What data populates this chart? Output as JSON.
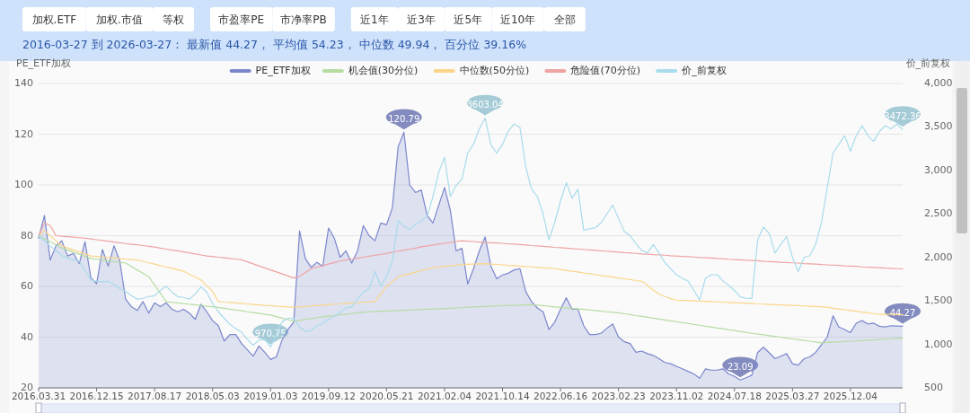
{
  "chart_data": {
    "type": "line",
    "subtitle": "2016-03-27 到 2026-03-27： 最新值 44.27， 平均值 54.23， 中位数 49.94， 百分位 39.16%",
    "annotations": [
      "加权.ETF",
      "加权.市值",
      "等权",
      "市盈率PE",
      "市净率PB",
      "近1年",
      "近3年",
      "近5年",
      "近10年",
      "全部"
    ],
    "ylabel": "PE_ETF加权",
    "y2label": "价_前复权",
    "categories": [
      "2016.03.31",
      null,
      null,
      null,
      null,
      null,
      null,
      null,
      null,
      null,
      "2016.12.15",
      null,
      null,
      null,
      null,
      null,
      null,
      null,
      null,
      null,
      "2017.08.17",
      null,
      null,
      null,
      null,
      null,
      null,
      null,
      null,
      null,
      "2018.05.03",
      null,
      null,
      null,
      null,
      null,
      null,
      null,
      null,
      null,
      "2019.01.03",
      null,
      null,
      null,
      null,
      null,
      null,
      null,
      null,
      null,
      "2019.09.12",
      null,
      null,
      null,
      null,
      null,
      null,
      null,
      null,
      null,
      "2020.05.21",
      null,
      null,
      null,
      null,
      null,
      null,
      null,
      null,
      null,
      "2021.02.04",
      null,
      null,
      null,
      null,
      null,
      null,
      null,
      null,
      null,
      "2021.10.14",
      null,
      null,
      null,
      null,
      null,
      null,
      null,
      null,
      null,
      "2022.06.16",
      null,
      null,
      null,
      null,
      null,
      null,
      null,
      null,
      null,
      "2023.02.23",
      null,
      null,
      null,
      null,
      null,
      null,
      null,
      null,
      null,
      "2023.11.02",
      null,
      null,
      null,
      null,
      null,
      null,
      null,
      null,
      null,
      "2024.07.18",
      null,
      null,
      null,
      null,
      null,
      null,
      null,
      null,
      null,
      "2025.03.27",
      null,
      null,
      null,
      null,
      null,
      null,
      null,
      null,
      null,
      "2025.12.04",
      null,
      null,
      null,
      null,
      null,
      null,
      null,
      null,
      null
    ],
    "ylim": [
      20,
      140
    ],
    "yticks": [
      20,
      40,
      60,
      80,
      100,
      120,
      140
    ],
    "y2lim": [
      500,
      4000
    ],
    "y2ticks": [
      500,
      {
        "value": 1000,
        "label": "1,000"
      },
      {
        "value": 1500,
        "label": "1,500"
      },
      {
        "value": 2000,
        "label": "2,000"
      },
      {
        "value": 2500,
        "label": "2,500"
      },
      {
        "value": 3000,
        "label": "3,000"
      },
      {
        "value": 3500,
        "label": "3,500"
      },
      {
        "value": 4000,
        "label": "4,000"
      }
    ],
    "grid": "y",
    "legend": "top",
    "marker": "none",
    "series": [
      {
        "name": "PE_ETF加权",
        "type": "area",
        "color": "#7b87cc",
        "values": [
          79,
          88,
          70.4,
          76,
          78,
          72,
          73,
          69,
          77.6,
          63.5,
          61,
          74.6,
          68,
          76,
          70,
          55,
          52,
          50.5,
          54,
          49.5,
          53.5,
          52,
          53.5,
          51,
          50,
          51,
          49.5,
          47,
          53,
          50,
          46.5,
          44.5,
          38.5,
          41,
          41,
          37.5,
          35,
          32.5,
          36.5,
          34,
          31.2,
          32.2,
          39,
          43,
          46,
          81.9,
          71,
          67.5,
          69.5,
          68,
          83,
          79,
          71.5,
          74,
          69.2,
          74,
          84,
          80,
          78,
          85,
          84.3,
          91,
          115,
          120.79,
          100,
          97,
          98,
          88,
          85,
          92,
          99,
          90,
          74,
          75,
          61,
          67,
          74,
          79.5,
          68,
          63,
          64.5,
          65.2,
          66.5,
          67,
          58,
          54,
          51.5,
          50,
          43,
          45.9,
          51,
          55.5,
          51,
          51,
          44.5,
          41,
          41,
          41.5,
          43.5,
          45.2,
          40,
          38.2,
          37.5,
          34,
          34.5,
          33.5,
          32.8,
          31.5,
          30,
          29.5,
          28.5,
          27.5,
          26.5,
          25.5,
          23.8,
          27.5,
          27,
          27,
          27.5,
          25.5,
          24.5,
          23.09,
          24,
          25,
          34,
          36,
          33.8,
          31.5,
          32.5,
          33.5,
          29.5,
          29,
          31.5,
          32.2,
          34,
          37,
          40,
          48.4,
          44,
          43,
          41.8,
          45.5,
          46.5,
          45.2,
          45.5,
          44.3,
          44,
          44.5,
          44.4,
          44.27
        ],
        "value_labels": [
          null,
          null,
          null,
          null,
          null,
          null,
          null,
          null,
          null,
          null,
          null,
          null,
          null,
          null,
          null,
          null,
          null,
          null,
          null,
          null,
          null,
          null,
          null,
          null,
          null,
          null,
          null,
          null,
          null,
          null,
          null,
          null,
          null,
          null,
          null,
          null,
          null,
          null,
          null,
          null,
          null,
          null,
          null,
          null,
          null,
          null,
          null,
          null,
          null,
          null,
          null,
          null,
          null,
          null,
          null,
          null,
          null,
          null,
          null,
          null,
          null,
          null,
          null,
          "120.79",
          null,
          null,
          null,
          null,
          null,
          null,
          null,
          null,
          null,
          null,
          null,
          null,
          null,
          null,
          null,
          null,
          null,
          null,
          null,
          null,
          null,
          null,
          null,
          null,
          null,
          null,
          null,
          null,
          null,
          null,
          null,
          null,
          null,
          null,
          null,
          null,
          null,
          null,
          null,
          null,
          null,
          null,
          null,
          null,
          null,
          null,
          null,
          null,
          null,
          null,
          null,
          null,
          null,
          null,
          null,
          null,
          null,
          "23.09",
          null,
          null,
          null,
          null,
          null,
          null,
          null,
          null,
          null,
          null,
          null,
          null,
          null,
          null,
          null,
          null,
          null,
          null,
          null,
          null,
          null,
          null,
          null,
          null,
          null,
          null,
          null,
          "44.27"
        ]
      },
      {
        "name": "机会值(30分位)",
        "type": "line",
        "color": "#b6dca2",
        "values": [
          80,
          78.8,
          77.6,
          76.4,
          75.2,
          74.4,
          73.5,
          72.7,
          71.8,
          71,
          70.7,
          70.4,
          70.1,
          69.8,
          69.5,
          69.2,
          67.9,
          66.5,
          65.2,
          63.8,
          60.5,
          57.3,
          54,
          53.7,
          53.5,
          53.2,
          53,
          52.7,
          52.5,
          52.2,
          52,
          51.7,
          51.4,
          51,
          50.7,
          50.4,
          50,
          49.7,
          49.4,
          49,
          48.7,
          48.1,
          47.5,
          46.9,
          46.3,
          46.6,
          47,
          47.3,
          47.7,
          48,
          48.3,
          48.5,
          48.8,
          49,
          49.3,
          49.5,
          49.8,
          50,
          50.1,
          50.2,
          50.3,
          50.4,
          50.5,
          50.6,
          50.7,
          50.8,
          50.9,
          51,
          51.1,
          51.2,
          51.3,
          51.4,
          51.5,
          51.6,
          51.8,
          51.9,
          52,
          52.1,
          52.2,
          52.3,
          52.4,
          52.4,
          52.5,
          52.6,
          52.7,
          52.8,
          52.6,
          52.4,
          52.2,
          51.9,
          51.7,
          51.5,
          51.3,
          51.1,
          50.9,
          50.7,
          50.5,
          50.2,
          50,
          49.8,
          49.6,
          49.2,
          48.9,
          48.5,
          48.2,
          47.8,
          47.5,
          47.1,
          46.8,
          46.4,
          46.1,
          45.7,
          45.4,
          45,
          44.7,
          44.3,
          44,
          43.6,
          43.3,
          42.9,
          42.6,
          42.2,
          41.9,
          41.5,
          41.2,
          40.9,
          40.6,
          40.3,
          40,
          39.6,
          39.3,
          39,
          38.7,
          38.4,
          38.1,
          37.75,
          37.9,
          38,
          38.1,
          38.3,
          38.4,
          38.5,
          38.7,
          38.8,
          38.9,
          39.1,
          39.2,
          39.3,
          39.5,
          39.6
        ]
      },
      {
        "name": "中位数(50分位)",
        "type": "line",
        "color": "#fbd68a",
        "values": [
          80,
          82,
          80,
          78,
          76,
          75.2,
          74.4,
          73.6,
          72.8,
          72,
          71.8,
          71.6,
          71.4,
          71.2,
          71,
          70.8,
          70.6,
          70.4,
          69.9,
          69.3,
          68.8,
          68.2,
          67.7,
          67.1,
          66.6,
          66,
          64.8,
          63.7,
          62.5,
          60.3,
          58,
          54,
          53.8,
          53.7,
          53.5,
          53.3,
          53.1,
          52.9,
          52.7,
          52.5,
          52.4,
          52.2,
          52.1,
          51.9,
          51.8,
          52,
          52.1,
          52.3,
          52.5,
          52.6,
          52.8,
          53,
          53.1,
          53.3,
          53.5,
          53.6,
          53.8,
          53.9,
          54,
          57,
          60,
          61.9,
          63.8,
          64.4,
          65,
          65.6,
          66.2,
          66.8,
          67.4,
          67.6,
          67.9,
          68.1,
          68.4,
          68.6,
          68.7,
          68.8,
          68.9,
          69,
          68.8,
          68.7,
          68.5,
          68.3,
          68.2,
          68,
          67.8,
          67.7,
          67.5,
          67.3,
          67.2,
          67,
          66.7,
          66.3,
          66,
          65.7,
          65.3,
          65,
          64.7,
          64.3,
          64,
          63.7,
          63.3,
          63,
          62.7,
          62.3,
          62,
          60.5,
          58.5,
          57,
          56,
          55.2,
          54.6,
          54.5,
          54.4,
          54.3,
          54.2,
          54.1,
          54,
          53.9,
          53.8,
          53.7,
          53.6,
          53.5,
          53.4,
          53.3,
          53.1,
          53,
          52.9,
          52.8,
          52.7,
          52.6,
          52.5,
          52.4,
          52.3,
          52.2,
          52.1,
          52,
          51.7,
          51.4,
          51.1,
          50.8,
          50.5,
          50.2,
          49.9,
          49.6,
          49.3,
          49,
          49,
          49,
          48.9,
          48.9
        ]
      },
      {
        "name": "危险值(70分位)",
        "type": "line",
        "color": "#f0a3a3",
        "values": [
          80,
          85,
          84,
          80,
          79.8,
          79.6,
          79.4,
          79.2,
          79,
          78.7,
          78.4,
          78.1,
          77.8,
          77.5,
          77.2,
          76.9,
          76.6,
          76.4,
          76.1,
          75.8,
          75.5,
          75.1,
          74.7,
          74.3,
          74,
          73.6,
          73.2,
          72.8,
          72.4,
          72,
          71.8,
          71.5,
          71.3,
          71,
          70.8,
          70.5,
          69.7,
          68.9,
          68.1,
          67.3,
          66.5,
          65.7,
          64.9,
          64.1,
          63.3,
          64,
          65.5,
          67,
          67.6,
          68.2,
          68.8,
          69.4,
          70,
          70.4,
          70.8,
          71.1,
          71.5,
          71.9,
          72.3,
          72.6,
          73,
          73.4,
          73.9,
          74.3,
          74.7,
          75.1,
          75.6,
          76,
          76.3,
          76.7,
          77,
          77.3,
          77.7,
          78,
          77.8,
          77.7,
          77.5,
          77.3,
          77.2,
          77.1,
          77,
          76.8,
          76.7,
          76.5,
          76.3,
          76.1,
          76,
          75.8,
          75.6,
          75.4,
          75.3,
          75.1,
          74.9,
          74.7,
          74.6,
          74.4,
          74.2,
          74,
          73.9,
          73.7,
          73.5,
          73.3,
          73.2,
          73,
          72.8,
          72.7,
          72.5,
          72.4,
          72.3,
          72.1,
          72,
          71.8,
          71.7,
          71.6,
          71.4,
          71.3,
          71.2,
          71,
          70.9,
          70.7,
          70.6,
          70.5,
          70.3,
          70.2,
          70.1,
          69.9,
          69.8,
          69.7,
          69.5,
          69.4,
          69.3,
          69.2,
          69,
          68.9,
          68.8,
          68.6,
          68.5,
          68.4,
          68.3,
          68.1,
          68,
          67.9,
          67.7,
          67.6,
          67.5,
          67.4,
          67.2,
          67.1,
          67,
          66.9
        ]
      },
      {
        "name": "价_前复权",
        "type": "line",
        "axis": "y2",
        "color": "#a9dcec",
        "values": [
          2250,
          2190,
          2130,
          2080,
          2020,
          1990,
          1970,
          1960,
          1850,
          1740,
          1725,
          1720,
          1725,
          1690,
          1640,
          1610,
          1560,
          1520,
          1530,
          1550,
          1560,
          1620,
          1670,
          1600,
          1550,
          1540,
          1520,
          1580,
          1660,
          1600,
          1470,
          1375,
          1300,
          1230,
          1180,
          1140,
          1060,
          990,
          1050,
          1060,
          970.75,
          1120,
          1260,
          1300,
          1300,
          1200,
          1150,
          1160,
          1210,
          1240,
          1290,
          1320,
          1370,
          1420,
          1430,
          1520,
          1600,
          1640,
          1840,
          1670,
          1780,
          1960,
          2420,
          2360,
          2320,
          2380,
          2420,
          2470,
          2700,
          2980,
          3150,
          2700,
          2830,
          2900,
          3200,
          3300,
          3479,
          3603.04,
          3296,
          3200,
          3300,
          3450,
          3533,
          3497,
          3041,
          2786,
          2700,
          2500,
          2203,
          2400,
          2650,
          2859,
          2680,
          2786,
          2312,
          2330,
          2340,
          2400,
          2500,
          2604,
          2450,
          2300,
          2250,
          2160,
          2080,
          2050,
          2148,
          2050,
          1940,
          1870,
          1800,
          1760,
          1729,
          1620,
          1510,
          1760,
          1801,
          1801,
          1730,
          1680,
          1620,
          1546,
          1530,
          1528,
          2203,
          2348,
          2276,
          2050,
          2150,
          2239,
          2000,
          1838,
          2000,
          2020,
          2150,
          2400,
          2800,
          3200,
          3300,
          3400,
          3223,
          3400,
          3515,
          3400,
          3333,
          3450,
          3515,
          3479,
          3533,
          3472.36
        ],
        "value_labels": [
          null,
          null,
          null,
          null,
          null,
          null,
          null,
          null,
          null,
          null,
          null,
          null,
          null,
          null,
          null,
          null,
          null,
          null,
          null,
          null,
          null,
          null,
          null,
          null,
          null,
          null,
          null,
          null,
          null,
          null,
          null,
          null,
          null,
          null,
          null,
          null,
          null,
          null,
          null,
          null,
          "970.75",
          null,
          null,
          null,
          null,
          null,
          null,
          null,
          null,
          null,
          null,
          null,
          null,
          null,
          null,
          null,
          null,
          null,
          null,
          null,
          null,
          null,
          null,
          null,
          null,
          null,
          null,
          null,
          null,
          null,
          null,
          null,
          null,
          null,
          null,
          null,
          null,
          "3603.04",
          null,
          null,
          null,
          null,
          null,
          null,
          null,
          null,
          null,
          null,
          null,
          null,
          null,
          null,
          null,
          null,
          null,
          null,
          null,
          null,
          null,
          null,
          null,
          null,
          null,
          null,
          null,
          null,
          null,
          null,
          null,
          null,
          null,
          null,
          null,
          null,
          null,
          null,
          null,
          null,
          null,
          null,
          null,
          null,
          null,
          null,
          null,
          null,
          null,
          null,
          null,
          null,
          null,
          null,
          null,
          null,
          null,
          null,
          null,
          null,
          null,
          null,
          null,
          null,
          null,
          null,
          null,
          null,
          null,
          null,
          null,
          "3472.36"
        ]
      }
    ]
  }
}
